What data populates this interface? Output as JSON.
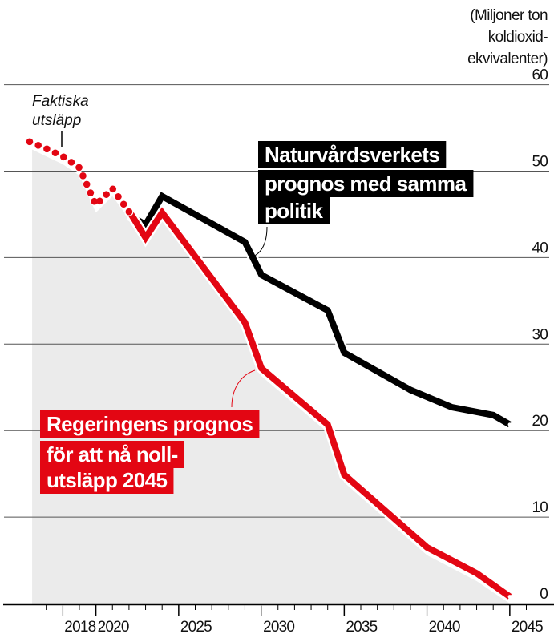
{
  "chart_data": {
    "type": "line",
    "title": "",
    "ylabel": "(Miljoner ton koldioxid-ekvivalenter)",
    "ylabel_lines": [
      "(Miljoner ton",
      "koldioxid-",
      "ekvivalenter)"
    ],
    "xlabel": "",
    "ylim": [
      0,
      60
    ],
    "xlim": [
      2016,
      2045
    ],
    "y_ticks": [
      "0",
      "10",
      "20",
      "30",
      "40",
      "50",
      "60"
    ],
    "x_ticks": [
      "2018",
      "2020",
      "2025",
      "2030",
      "2035",
      "2040",
      "2045"
    ],
    "grid": true,
    "series": [
      {
        "name": "Faktiska utsläpp",
        "name_lines": [
          "Faktiska",
          "utsläpp"
        ],
        "style": "dotted",
        "color": "#e30613",
        "points": [
          [
            2016,
            53.4
          ],
          [
            2017,
            52.6
          ],
          [
            2018,
            51.7
          ],
          [
            2019,
            50.4
          ],
          [
            2020,
            46.1
          ],
          [
            2021,
            48.0
          ],
          [
            2022,
            45.3
          ]
        ]
      },
      {
        "name": "Naturvårdsverkets prognos med samma politik",
        "name_lines": [
          "Naturvårdsverkets",
          "prognos med samma",
          "politik"
        ],
        "color": "#000000",
        "points": [
          [
            2022,
            44.9
          ],
          [
            2023,
            43.8
          ],
          [
            2024,
            47.1
          ],
          [
            2029,
            41.8
          ],
          [
            2030,
            38.0
          ],
          [
            2034,
            33.9
          ],
          [
            2035,
            29.0
          ],
          [
            2039,
            24.7
          ],
          [
            2041.5,
            22.7
          ],
          [
            2044,
            21.8
          ],
          [
            2045,
            20.7
          ]
        ]
      },
      {
        "name": "Regeringens prognos för att nå noll-utsläpp 2045",
        "name_lines": [
          "Regeringens prognos",
          "för att nå noll-",
          "utsläpp 2045"
        ],
        "color": "#e30613",
        "points": [
          [
            2022,
            45.4
          ],
          [
            2023,
            42.3
          ],
          [
            2024,
            45.2
          ],
          [
            2029,
            32.5
          ],
          [
            2030,
            27.2
          ],
          [
            2034,
            20.7
          ],
          [
            2035,
            14.9
          ],
          [
            2040,
            6.5
          ],
          [
            2043,
            3.5
          ],
          [
            2045,
            0.8
          ]
        ]
      }
    ],
    "area_color": "#ebebeb"
  }
}
